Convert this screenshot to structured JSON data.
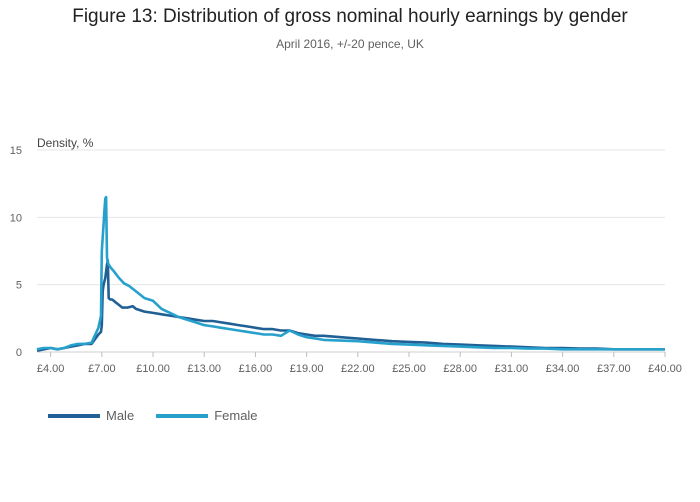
{
  "header": {
    "title": "Figure 13: Distribution of gross nominal hourly earnings by gender",
    "subtitle": "April 2016, +/-20 pence, UK"
  },
  "colors": {
    "male": "#206095",
    "female": "#27a0cc",
    "grid": "#e6e6e6"
  },
  "chart_data": {
    "type": "line",
    "title": "Figure 13: Distribution of gross nominal hourly earnings by gender",
    "subtitle": "April 2016, +/-20 pence, UK",
    "ylabel": "Density, %",
    "xlabel": "",
    "xlim": [
      3.2,
      40.0
    ],
    "ylim": [
      0,
      15
    ],
    "x_tick_labels": [
      "£4.00",
      "£7.00",
      "£10.00",
      "£13.00",
      "£16.00",
      "£19.00",
      "£22.00",
      "£25.00",
      "£28.00",
      "£31.00",
      "£34.00",
      "£37.00",
      "£40.00"
    ],
    "x_tick_values": [
      4,
      7,
      10,
      13,
      16,
      19,
      22,
      25,
      28,
      31,
      34,
      37,
      40
    ],
    "y_tick_values": [
      0,
      5,
      10,
      15
    ],
    "grid": true,
    "legend_position": "bottom-left",
    "series": [
      {
        "name": "Male",
        "color": "#206095",
        "x": [
          3.2,
          3.6,
          4.0,
          4.4,
          4.8,
          5.2,
          5.6,
          6.0,
          6.4,
          6.8,
          6.95,
          7.0,
          7.05,
          7.1,
          7.2,
          7.3,
          7.35,
          7.4,
          7.5,
          7.6,
          7.7,
          7.8,
          8.0,
          8.2,
          8.5,
          8.8,
          9.0,
          9.5,
          10.0,
          10.5,
          11.0,
          11.5,
          12.0,
          12.5,
          13.0,
          13.5,
          14.0,
          14.5,
          15.0,
          15.5,
          16.0,
          16.5,
          17.0,
          17.5,
          18.0,
          18.5,
          19.0,
          19.5,
          20.0,
          21.0,
          22.0,
          23.0,
          24.0,
          25.0,
          26.0,
          27.0,
          28.0,
          29.0,
          30.0,
          31.0,
          32.0,
          33.0,
          34.0,
          35.0,
          36.0,
          37.0,
          38.0,
          39.0,
          40.0
        ],
        "y": [
          0.1,
          0.2,
          0.3,
          0.2,
          0.3,
          0.4,
          0.5,
          0.6,
          0.6,
          1.3,
          1.5,
          2.0,
          4.5,
          5.0,
          5.5,
          6.5,
          6.8,
          4.0,
          3.9,
          3.9,
          3.8,
          3.7,
          3.5,
          3.3,
          3.3,
          3.4,
          3.2,
          3.0,
          2.9,
          2.8,
          2.7,
          2.6,
          2.5,
          2.4,
          2.3,
          2.3,
          2.2,
          2.1,
          2.0,
          1.9,
          1.8,
          1.7,
          1.7,
          1.6,
          1.6,
          1.4,
          1.3,
          1.2,
          1.2,
          1.1,
          1.0,
          0.9,
          0.8,
          0.75,
          0.7,
          0.6,
          0.55,
          0.5,
          0.45,
          0.4,
          0.35,
          0.3,
          0.3,
          0.25,
          0.25,
          0.2,
          0.2,
          0.2,
          0.2
        ]
      },
      {
        "name": "Female",
        "color": "#27a0cc",
        "x": [
          3.2,
          3.6,
          4.0,
          4.4,
          4.8,
          5.2,
          5.6,
          6.0,
          6.4,
          6.8,
          6.95,
          7.0,
          7.05,
          7.1,
          7.15,
          7.2,
          7.25,
          7.3,
          7.35,
          7.4,
          7.5,
          7.7,
          8.0,
          8.3,
          8.6,
          9.0,
          9.5,
          10.0,
          10.5,
          11.0,
          11.5,
          12.0,
          12.5,
          13.0,
          13.5,
          14.0,
          14.5,
          15.0,
          15.5,
          16.0,
          16.5,
          17.0,
          17.5,
          18.0,
          18.5,
          19.0,
          19.5,
          20.0,
          21.0,
          22.0,
          23.0,
          24.0,
          25.0,
          26.0,
          27.0,
          28.0,
          29.0,
          30.0,
          31.0,
          32.0,
          33.0,
          34.0,
          35.0,
          36.0,
          37.0,
          38.0,
          39.0,
          40.0
        ],
        "y": [
          0.2,
          0.3,
          0.3,
          0.2,
          0.3,
          0.5,
          0.6,
          0.6,
          0.7,
          1.8,
          2.7,
          7.5,
          8.5,
          9.5,
          10.5,
          11.4,
          11.5,
          7.0,
          6.6,
          6.5,
          6.3,
          6.0,
          5.5,
          5.1,
          4.9,
          4.5,
          4.0,
          3.8,
          3.2,
          2.9,
          2.6,
          2.4,
          2.2,
          2.0,
          1.9,
          1.8,
          1.7,
          1.6,
          1.5,
          1.4,
          1.3,
          1.3,
          1.2,
          1.6,
          1.3,
          1.1,
          1.0,
          0.9,
          0.85,
          0.8,
          0.7,
          0.6,
          0.55,
          0.5,
          0.45,
          0.4,
          0.35,
          0.3,
          0.3,
          0.25,
          0.25,
          0.2,
          0.2,
          0.2,
          0.2,
          0.2,
          0.2,
          0.2
        ]
      }
    ]
  }
}
